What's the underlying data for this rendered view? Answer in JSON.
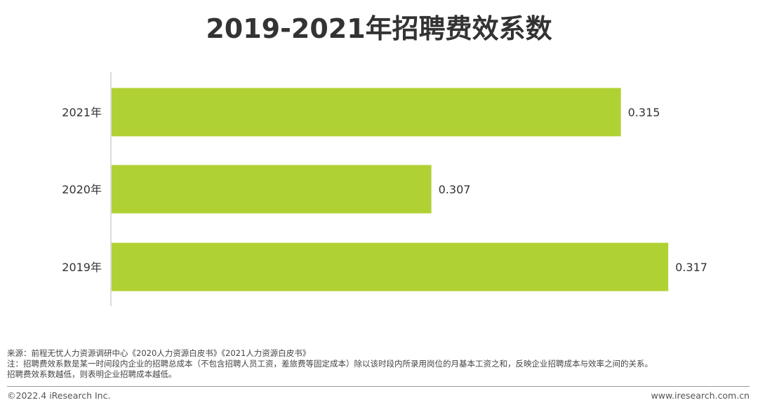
{
  "title": "2019-2021年招聘费效系数",
  "chart_data": {
    "type": "bar",
    "orientation": "horizontal",
    "categories": [
      "2021年",
      "2020年",
      "2019年"
    ],
    "values": [
      0.315,
      0.307,
      0.317
    ],
    "value_labels": [
      "0.315",
      "0.307",
      "0.317"
    ],
    "xlim": [
      0.2935,
      0.3175
    ],
    "grid": false,
    "legend": "none",
    "bar_color": "#b0d134"
  },
  "notes": {
    "source": "来源：前程无忧人力资源调研中心《2020人力资源白皮书》《2021人力资源白皮书》",
    "note1": "注：招聘费效系数是某一时间段内企业的招聘总成本（不包含招聘人员工资，差旅费等固定成本）除以该时段内所录用岗位的月基本工资之和，反映企业招聘成本与效率之间的关系。",
    "note2": "招聘费效系数越低，则表明企业招聘成本越低。"
  },
  "footer": {
    "copyright": "©2022.4 iResearch Inc.",
    "website": "www.iresearch.com.cn"
  }
}
